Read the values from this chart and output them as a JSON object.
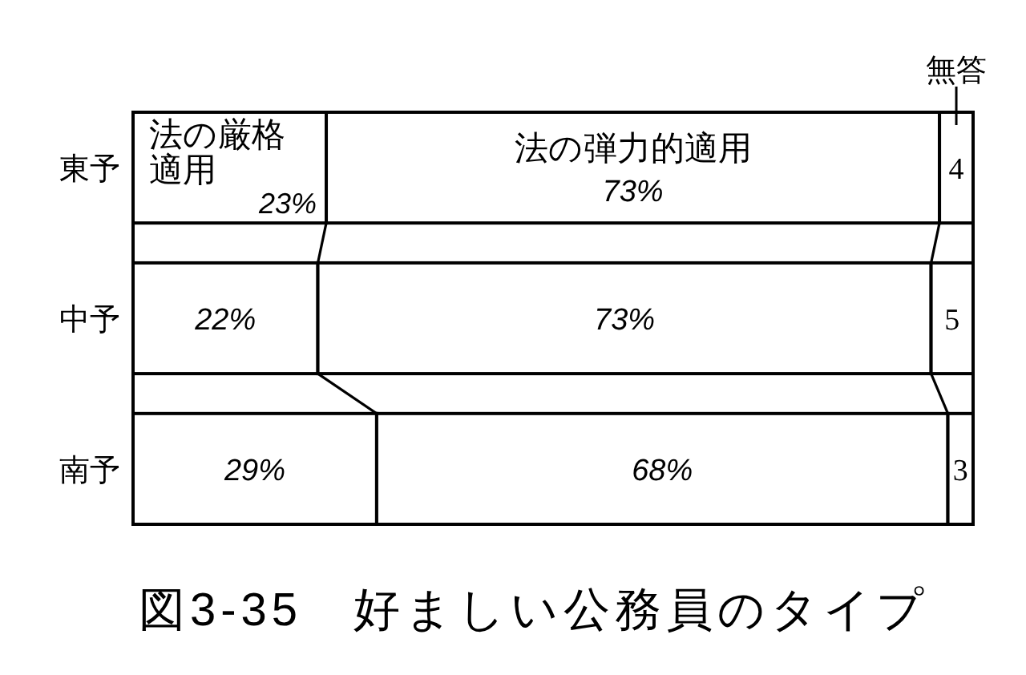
{
  "chart_data": {
    "type": "bar",
    "orientation": "horizontal",
    "stacked": true,
    "title": "図3-35　好ましい公務員のタイプ",
    "categories": [
      "東予",
      "中予",
      "南予"
    ],
    "xlim": [
      0,
      100
    ],
    "tick_labels": "y",
    "series": [
      {
        "name": "法の厳格適用",
        "color": "#ffffff",
        "values": [
          23,
          22,
          29
        ],
        "value_labels": [
          "23%",
          "22%",
          "29%"
        ]
      },
      {
        "name": "法の弾力的適用",
        "color": "#ffffff",
        "values": [
          73,
          73,
          68
        ],
        "value_labels": [
          "73%",
          "73%",
          "68%"
        ]
      },
      {
        "name": "無答",
        "color": "#ffffff",
        "values": [
          4,
          5,
          3
        ],
        "value_labels": [
          "4",
          "5",
          "3"
        ]
      }
    ]
  }
}
